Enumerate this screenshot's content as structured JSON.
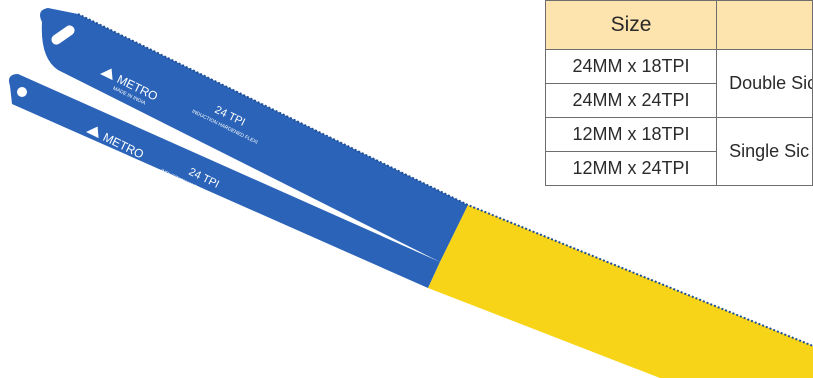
{
  "blades": [
    {
      "brand": "METRO",
      "origin": "MADE IN INDIA",
      "tpi": "24 TPI",
      "type": "INDUCTION HARDENED FLEXI",
      "colors": {
        "body": "#2a63b8",
        "tip": "#f7d417"
      }
    },
    {
      "brand": "METRO",
      "origin": "MADE IN INDIA",
      "tpi": "24 TPI",
      "type": "INDUCTION HARDENED FLEXI",
      "colors": {
        "body": "#2a63b8",
        "tip": "#f7d417"
      }
    }
  ],
  "table": {
    "headers": [
      "Size",
      ""
    ],
    "rows": [
      {
        "size": "24MM x 18TPI",
        "type": "Double Sic"
      },
      {
        "size": "24MM x 24TPI"
      },
      {
        "size": "12MM x 18TPI",
        "type": "Single Sic"
      },
      {
        "size": "12MM x 24TPI"
      }
    ],
    "colors": {
      "header_bg": "#fde3ad",
      "border": "#6e6e6e"
    }
  }
}
